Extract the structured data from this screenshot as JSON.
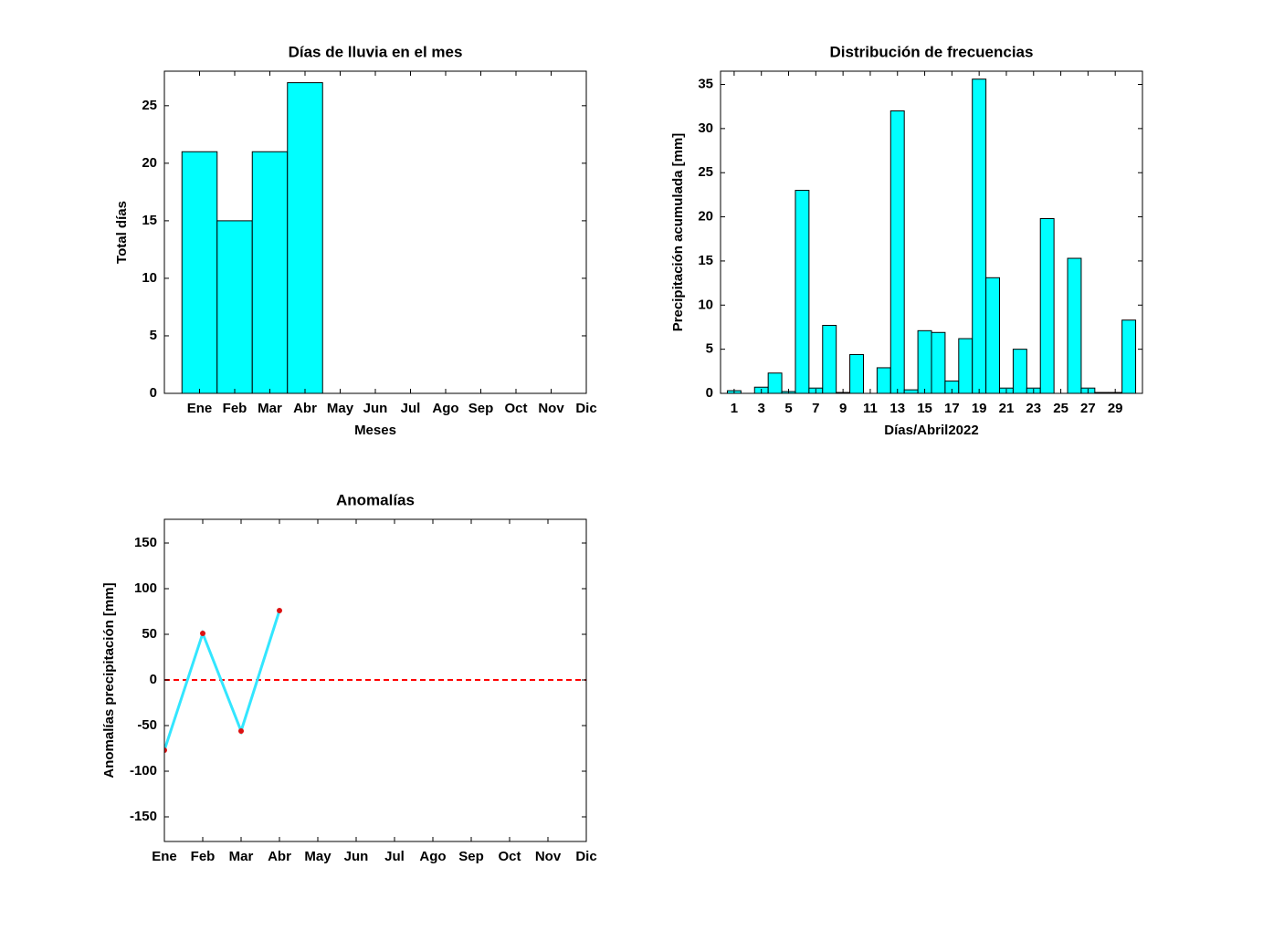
{
  "chart_data": [
    {
      "type": "bar",
      "title": "Días de lluvia en el mes",
      "xlabel": "Meses",
      "ylabel": "Total días",
      "categories": [
        "Ene",
        "Feb",
        "Mar",
        "Abr",
        "May",
        "Jun",
        "Jul",
        "Ago",
        "Sep",
        "Oct",
        "Nov",
        "Dic"
      ],
      "values": [
        21,
        15,
        21,
        27,
        null,
        null,
        null,
        null,
        null,
        null,
        null,
        null
      ],
      "color": "#00ffff",
      "ylim": [
        0,
        28
      ],
      "yticks": [
        0,
        5,
        10,
        15,
        20,
        25
      ]
    },
    {
      "type": "bar",
      "title": "Distribución de frecuencias",
      "xlabel": "Días/Abril2022",
      "ylabel": "Precipitación acumulada [mm]",
      "x": [
        1,
        2,
        3,
        4,
        5,
        6,
        7,
        8,
        9,
        10,
        11,
        12,
        13,
        14,
        15,
        16,
        17,
        18,
        19,
        20,
        21,
        22,
        23,
        24,
        25,
        26,
        27,
        28,
        29,
        30
      ],
      "values": [
        0.3,
        0,
        0.7,
        2.3,
        0.2,
        23,
        0.6,
        7.7,
        0.1,
        4.4,
        0,
        2.9,
        32,
        0.4,
        7.1,
        6.9,
        1.4,
        6.2,
        35.6,
        13.1,
        0.6,
        5.0,
        0.6,
        19.8,
        0,
        15.3,
        0.6,
        0.1,
        0.1,
        8.3
      ],
      "color": "#00ffff",
      "xlim": [
        0,
        31
      ],
      "xticks": [
        1,
        3,
        5,
        7,
        9,
        11,
        13,
        15,
        17,
        19,
        21,
        23,
        25,
        27,
        29
      ],
      "ylim": [
        0,
        36.5
      ],
      "yticks": [
        0,
        5,
        10,
        15,
        20,
        25,
        30,
        35
      ]
    },
    {
      "type": "line",
      "title": "Anomalías",
      "ylabel": "Anomalías precipitación [mm]",
      "categories": [
        "Ene",
        "Feb",
        "Mar",
        "Abr",
        "May",
        "Jun",
        "Jul",
        "Ago",
        "Sep",
        "Oct",
        "Nov",
        "Dic"
      ],
      "values": [
        -77,
        51,
        -56,
        76,
        null,
        null,
        null,
        null,
        null,
        null,
        null,
        null
      ],
      "color": "#33e6ff",
      "marker_color": "#dd1111",
      "hline": 0,
      "hline_color": "#ff0000",
      "ylim": [
        -177,
        176
      ],
      "yticks": [
        -150,
        -100,
        -50,
        0,
        50,
        100,
        150
      ]
    }
  ]
}
